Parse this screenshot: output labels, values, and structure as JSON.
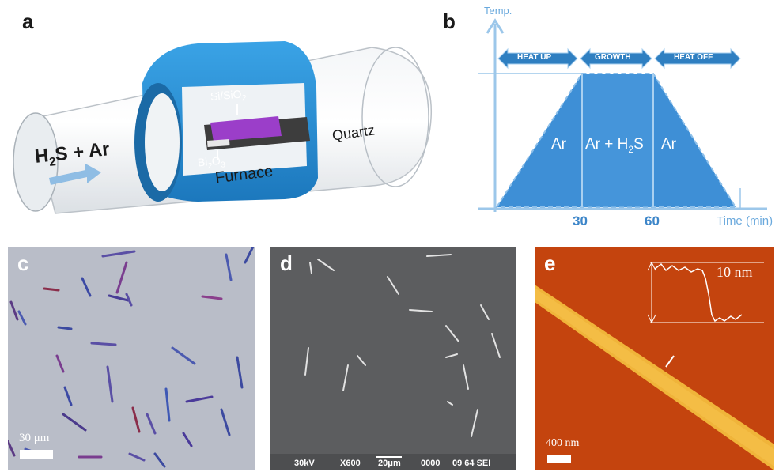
{
  "panels": {
    "a": {
      "letter": "a",
      "gas_label": "H2S + Ar",
      "gas_main": "H",
      "gas_sub": "2",
      "gas_rest": "S + Ar",
      "substrate_label": "Si/SiO2",
      "substrate_main": "Si/SiO",
      "substrate_sub": "2",
      "source_label": "Bi2O3",
      "source_main": "Bi",
      "source_sub1": "2",
      "source_mid": "O",
      "source_sub2": "3",
      "furnace_label": "Furnace",
      "tube_label": "Quartz"
    },
    "b": {
      "letter": "b",
      "y_axis_label": "Temp.",
      "x_axis_label": "Time (min)",
      "tick_30": "30",
      "tick_60": "60",
      "phase_heat_up": "HEAT UP",
      "phase_growth": "GROWTH",
      "phase_heat_off": "HEAT OFF",
      "gas_left": "Ar",
      "gas_middle_main": "Ar + H",
      "gas_middle_sub": "2",
      "gas_middle_rest": "S",
      "gas_right": "Ar"
    },
    "c": {
      "letter": "c",
      "scale_label": "30 μm"
    },
    "d": {
      "letter": "d",
      "voltage": "30kV",
      "magnification": "X600",
      "scale_label": "20μm",
      "code1": "0000",
      "code2": "09 64 SEI"
    },
    "e": {
      "letter": "e",
      "height_label": "10 nm",
      "scale_label": "400 nm"
    }
  },
  "colors": {
    "furnace_blue": "#2a8fd4",
    "arrow_blue": "#2f7fc1",
    "trapezoid_blue": "#3e8fd6",
    "optical_bg": "#b8bcc7",
    "sem_bg": "#5b5c5e",
    "afm_bg": "#c0400a",
    "afm_wire": "#f0b43a"
  }
}
